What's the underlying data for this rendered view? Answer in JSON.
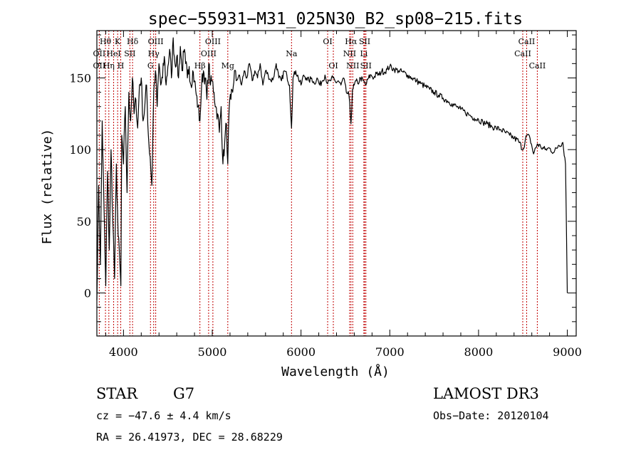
{
  "chart_data": {
    "type": "line",
    "title": "spec−55931−M31_025N30_B2_sp08−215.fits",
    "xlabel": "Wavelength (Å)",
    "ylabel": "Flux (relative)",
    "xlim": [
      3700,
      9100
    ],
    "ylim": [
      -30,
      183
    ],
    "xticks": [
      4000,
      5000,
      6000,
      7000,
      8000,
      9000
    ],
    "yticks": [
      0,
      50,
      100,
      150
    ],
    "series": [
      {
        "name": "flux",
        "x": [
          3700,
          3720,
          3740,
          3760,
          3780,
          3800,
          3820,
          3840,
          3860,
          3880,
          3900,
          3920,
          3940,
          3960,
          3970,
          3980,
          4000,
          4020,
          4040,
          4060,
          4080,
          4100,
          4120,
          4140,
          4160,
          4180,
          4200,
          4220,
          4240,
          4260,
          4280,
          4300,
          4320,
          4340,
          4360,
          4380,
          4400,
          4420,
          4440,
          4460,
          4480,
          4500,
          4520,
          4540,
          4560,
          4580,
          4600,
          4620,
          4640,
          4660,
          4680,
          4700,
          4720,
          4740,
          4760,
          4780,
          4800,
          4820,
          4840,
          4861,
          4880,
          4900,
          4920,
          4940,
          4960,
          4980,
          5000,
          5020,
          5040,
          5060,
          5080,
          5100,
          5120,
          5140,
          5160,
          5175,
          5190,
          5210,
          5230,
          5250,
          5270,
          5300,
          5330,
          5360,
          5390,
          5420,
          5450,
          5480,
          5510,
          5540,
          5570,
          5600,
          5630,
          5660,
          5690,
          5720,
          5750,
          5780,
          5810,
          5840,
          5870,
          5893,
          5910,
          5940,
          5970,
          6000,
          6030,
          6060,
          6090,
          6120,
          6150,
          6180,
          6210,
          6240,
          6270,
          6300,
          6330,
          6360,
          6390,
          6420,
          6450,
          6480,
          6510,
          6540,
          6563,
          6580,
          6600,
          6620,
          6640,
          6670,
          6700,
          6730,
          6760,
          6790,
          6820,
          6850,
          6880,
          6910,
          6940,
          6970,
          7000,
          7050,
          7100,
          7150,
          7200,
          7250,
          7300,
          7350,
          7400,
          7450,
          7500,
          7550,
          7600,
          7650,
          7700,
          7750,
          7800,
          7850,
          7900,
          7950,
          8000,
          8050,
          8100,
          8150,
          8200,
          8250,
          8300,
          8350,
          8400,
          8450,
          8500,
          8542,
          8580,
          8620,
          8662,
          8700,
          8750,
          8800,
          8850,
          8900,
          8950,
          8980,
          9000
        ],
        "values": [
          -5,
          75,
          20,
          120,
          60,
          5,
          85,
          30,
          100,
          50,
          10,
          90,
          40,
          20,
          5,
          110,
          90,
          130,
          70,
          140,
          120,
          150,
          125,
          135,
          115,
          145,
          150,
          120,
          130,
          145,
          110,
          95,
          75,
          140,
          155,
          130,
          160,
          145,
          150,
          165,
          145,
          158,
          170,
          150,
          178,
          160,
          165,
          150,
          172,
          155,
          168,
          160,
          150,
          158,
          145,
          155,
          148,
          138,
          130,
          120,
          145,
          155,
          150,
          135,
          160,
          145,
          148,
          140,
          130,
          125,
          112,
          130,
          90,
          105,
          118,
          90,
          128,
          135,
          140,
          155,
          148,
          152,
          145,
          155,
          150,
          160,
          148,
          155,
          150,
          160,
          145,
          155,
          152,
          148,
          150,
          160,
          150,
          148,
          155,
          152,
          145,
          115,
          150,
          155,
          150,
          145,
          152,
          150,
          148,
          150,
          146,
          150,
          145,
          148,
          152,
          146,
          148,
          150,
          147,
          148,
          145,
          150,
          140,
          138,
          118,
          142,
          145,
          148,
          146,
          150,
          148,
          145,
          150,
          152,
          150,
          153,
          152,
          155,
          154,
          156,
          158,
          156,
          155,
          154,
          152,
          150,
          148,
          146,
          144,
          142,
          140,
          138,
          136,
          134,
          132,
          130,
          128,
          126,
          124,
          122,
          121,
          119,
          118,
          116,
          115,
          114,
          112,
          110,
          108,
          106,
          100,
          110,
          108,
          97,
          104,
          102,
          100,
          101,
          98,
          103,
          105,
          90,
          0
        ]
      }
    ],
    "lines": [
      {
        "label": "Hθ",
        "wave": 3797,
        "row": 0
      },
      {
        "label": "K",
        "wave": 3934,
        "row": 0
      },
      {
        "label": "Hδ",
        "wave": 4102,
        "row": 0
      },
      {
        "label": "OIII",
        "wave": 4363,
        "row": 0
      },
      {
        "label": "OIII",
        "wave": 5007,
        "row": 0
      },
      {
        "label": "Na",
        "wave": 5893,
        "row": 1
      },
      {
        "label": "OI",
        "wave": 6300,
        "row": 0
      },
      {
        "label": "Hα",
        "wave": 6563,
        "row": 0
      },
      {
        "label": "SII",
        "wave": 6717,
        "row": 0
      },
      {
        "label": "CaII",
        "wave": 8542,
        "row": 0
      },
      {
        "label": "OII",
        "wave": 3727,
        "row": 1
      },
      {
        "label": "HeI",
        "wave": 3889,
        "row": 1
      },
      {
        "label": "SII",
        "wave": 4072,
        "row": 1
      },
      {
        "label": "Hγ",
        "wave": 4340,
        "row": 1
      },
      {
        "label": "OIII",
        "wave": 4959,
        "row": 1
      },
      {
        "label": "NII",
        "wave": 6548,
        "row": 1
      },
      {
        "label": "Li",
        "wave": 6708,
        "row": 1
      },
      {
        "label": "CaII",
        "wave": 8498,
        "row": 1
      },
      {
        "label": "OII",
        "wave": 3727,
        "row": 2
      },
      {
        "label": "Hη",
        "wave": 3835,
        "row": 2
      },
      {
        "label": "H",
        "wave": 3969,
        "row": 2
      },
      {
        "label": "G",
        "wave": 4304,
        "row": 2
      },
      {
        "label": "Hβ",
        "wave": 4861,
        "row": 2
      },
      {
        "label": "Mg",
        "wave": 5175,
        "row": 2
      },
      {
        "label": "OI",
        "wave": 6364,
        "row": 2
      },
      {
        "label": "NII",
        "wave": 6583,
        "row": 2
      },
      {
        "label": "SII",
        "wave": 6731,
        "row": 2
      },
      {
        "label": "CaII",
        "wave": 8662,
        "row": 2
      }
    ]
  },
  "info": {
    "object_class": "STAR",
    "subclass": "G7",
    "redshift": "cz = −47.6 ± 4.4 km/s",
    "coords": "RA =  26.41973, DEC =  28.68229",
    "survey": "LAMOST DR3",
    "obs_date": "Obs−Date: 20120104"
  }
}
